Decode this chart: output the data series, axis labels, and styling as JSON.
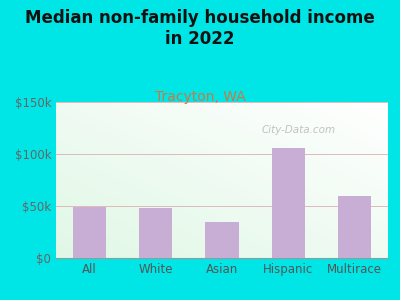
{
  "title": "Median non-family household income\nin 2022",
  "subtitle": "Tracyton, WA",
  "categories": [
    "All",
    "White",
    "Asian",
    "Hispanic",
    "Multirace"
  ],
  "values": [
    49000,
    48000,
    35000,
    106000,
    60000
  ],
  "bar_color": "#c8aed4",
  "title_fontsize": 12,
  "subtitle_fontsize": 10,
  "subtitle_color": "#cc7744",
  "title_color": "#111111",
  "background_outer": "#00e5e5",
  "ylim": [
    0,
    150000
  ],
  "yticks": [
    0,
    50000,
    100000,
    150000
  ],
  "ytick_labels": [
    "$0",
    "$50k",
    "$100k",
    "$150k"
  ],
  "watermark": "City-Data.com",
  "grid_color": "#ddbbbb",
  "axis_label_fontsize": 8.5
}
